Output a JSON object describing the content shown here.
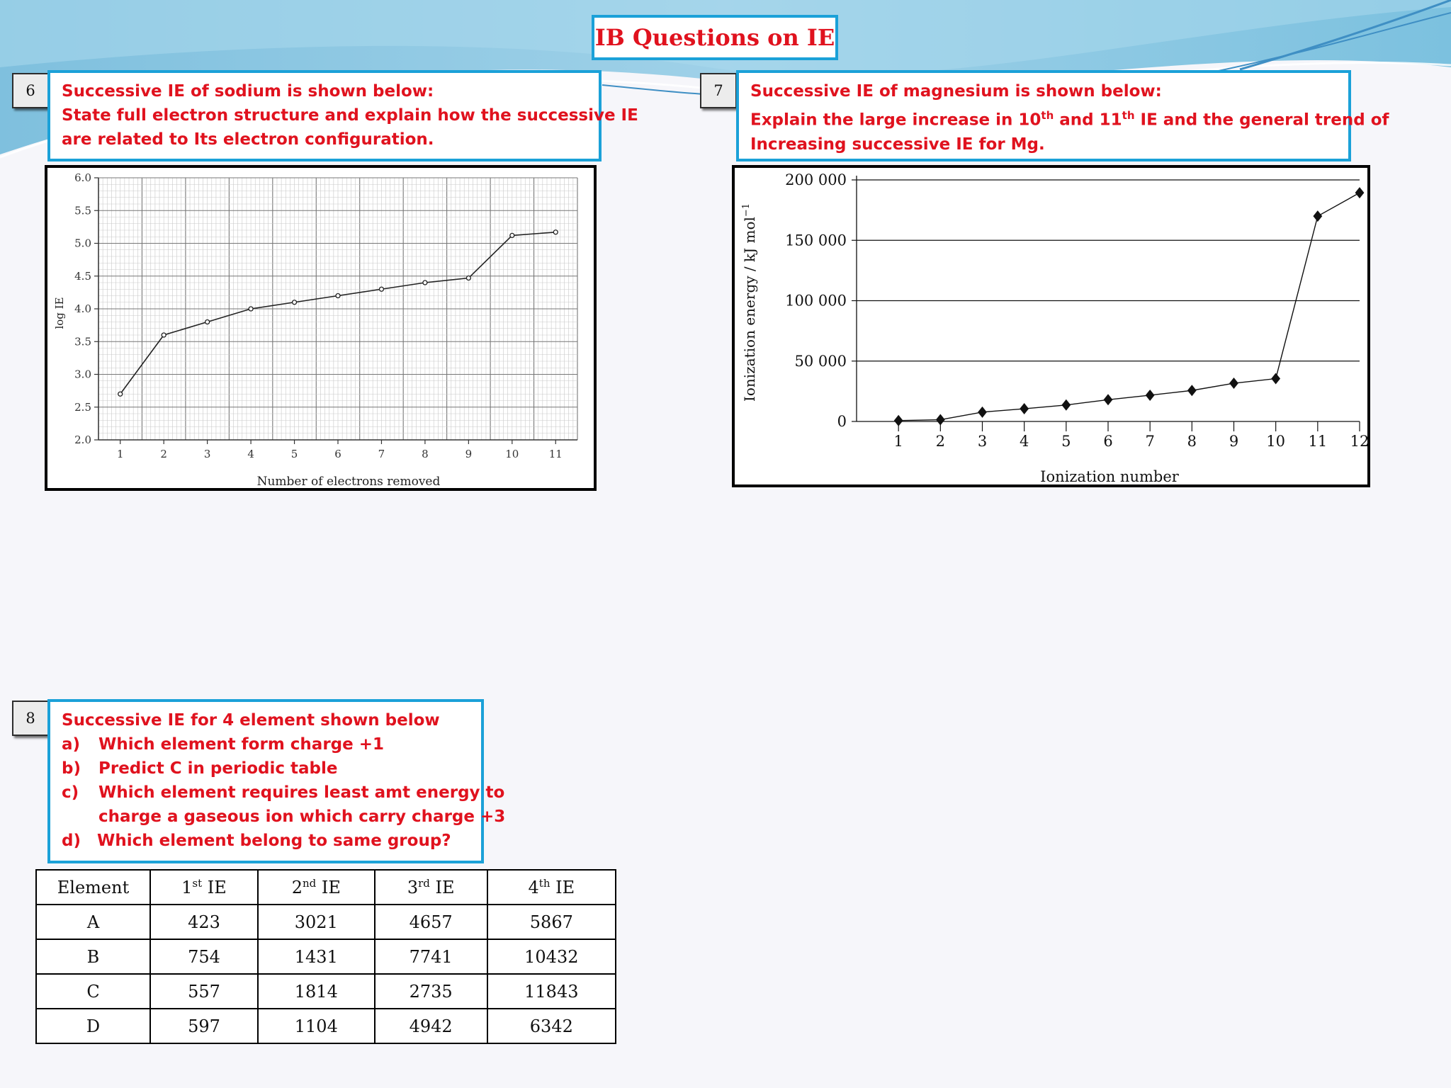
{
  "slide": {
    "title": "IB Questions on IE",
    "colors": {
      "accent": "#1ba1d8",
      "question_text": "#e0121e"
    }
  },
  "q6": {
    "number": "6",
    "lines": [
      "Successive IE of sodium is shown below:",
      "State full electron structure and explain how the successive IE",
      "are related to Its electron configuration."
    ]
  },
  "q7": {
    "number": "7",
    "line1": "Successive IE of magnesium is shown below:",
    "line2": {
      "a": "Explain the large increase in 10",
      "sup1": "th",
      "b": " and 11",
      "sup2": "th",
      "c": " IE and the general trend of"
    },
    "line3": "Increasing successive IE for Mg."
  },
  "q8": {
    "number": "8",
    "title": "Successive IE for 4 element shown below",
    "items": [
      {
        "label": "a)",
        "text": "Which element form charge +1"
      },
      {
        "label": "b)",
        "text": "Predict C in periodic table"
      },
      {
        "label": "c)",
        "text": "Which element requires least amt energy to",
        "text2": "charge a gaseous ion which carry charge +3"
      },
      {
        "label": "d)",
        "text": "Which element belong to same group?"
      }
    ]
  },
  "chart_data": [
    {
      "type": "line",
      "xlabel": "Number of electrons removed",
      "ylabel": "log IE",
      "x": [
        1,
        2,
        3,
        4,
        5,
        6,
        7,
        8,
        9,
        10,
        11
      ],
      "series": [
        {
          "values": [
            2.7,
            3.6,
            3.8,
            4.0,
            4.1,
            4.2,
            4.3,
            4.4,
            4.47,
            5.12,
            5.17
          ]
        }
      ],
      "xlim": [
        0.5,
        11.5
      ],
      "ylim": [
        2.0,
        6.0
      ],
      "x_ticks": [
        "1",
        "2",
        "3",
        "4",
        "5",
        "6",
        "7",
        "8",
        "9",
        "10",
        "11"
      ],
      "y_ticks": [
        "2.0",
        "2.5",
        "3.0",
        "3.5",
        "4.0",
        "4.5",
        "5.0",
        "5.5",
        "6.0"
      ],
      "grid": true
    },
    {
      "type": "line",
      "xlabel": "Ionization number",
      "ylabel": "Ionization energy / kJ mol",
      "ylabel_sup": "−1",
      "x": [
        1,
        2,
        3,
        4,
        5,
        6,
        7,
        8,
        9,
        10,
        11,
        12
      ],
      "series": [
        {
          "values": [
            738,
            1451,
            7733,
            10543,
            13630,
            18020,
            21711,
            25661,
            31653,
            35458,
            169988,
            189368
          ]
        }
      ],
      "xlim": [
        0,
        12
      ],
      "ylim": [
        0,
        200000
      ],
      "x_ticks": [
        "1",
        "2",
        "3",
        "4",
        "5",
        "6",
        "7",
        "8",
        "9",
        "10",
        "11",
        "12"
      ],
      "y_ticks": [
        "0",
        "50 000",
        "100 000",
        "150 000",
        "200 000"
      ],
      "grid": true
    }
  ],
  "table": {
    "headers": [
      {
        "text": "Element"
      },
      {
        "pre": "1",
        "sup": "st",
        "post": " IE"
      },
      {
        "pre": "2",
        "sup": "nd",
        "post": " IE"
      },
      {
        "pre": "3",
        "sup": "rd",
        "post": " IE"
      },
      {
        "pre": "4",
        "sup": "th",
        "post": " IE"
      }
    ],
    "rows": [
      [
        "A",
        "423",
        "3021",
        "4657",
        "5867"
      ],
      [
        "B",
        "754",
        "1431",
        "7741",
        "10432"
      ],
      [
        "C",
        "557",
        "1814",
        "2735",
        "11843"
      ],
      [
        "D",
        "597",
        "1104",
        "4942",
        "6342"
      ]
    ]
  }
}
